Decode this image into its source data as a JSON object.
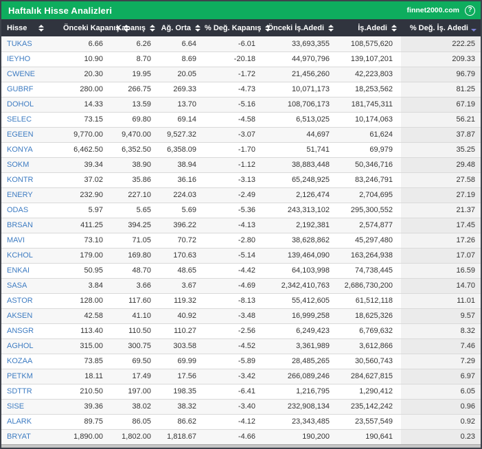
{
  "titlebar": {
    "title": "Haftalık Hisse Analizleri",
    "site": "finnet2000.com",
    "help_icon": "?"
  },
  "colors": {
    "titlebar_green": "#0ead5e",
    "header_dark": "#30343e",
    "ticker_blue": "#3e7cc2",
    "sorted_arrow": "#7b80d6"
  },
  "table": {
    "columns": [
      {
        "label": "Hisse",
        "sort": "both"
      },
      {
        "label": "Önceki Kapanış",
        "sort": "both"
      },
      {
        "label": "Kapanış",
        "sort": "both"
      },
      {
        "label": "Ağ. Orta",
        "sort": "both"
      },
      {
        "label": "% Değ. Kapanış",
        "sort": "both"
      },
      {
        "label": "Önceki İş.Adedi",
        "sort": "both"
      },
      {
        "label": "İş.Adedi",
        "sort": "both"
      },
      {
        "label": "% Değ. İş. Adedi",
        "sort": "desc"
      }
    ],
    "rows": [
      [
        "TUKAS",
        "6.66",
        "6.26",
        "6.64",
        "-6.01",
        "33,693,355",
        "108,575,620",
        "222.25"
      ],
      [
        "IEYHO",
        "10.90",
        "8.70",
        "8.69",
        "-20.18",
        "44,970,796",
        "139,107,201",
        "209.33"
      ],
      [
        "CWENE",
        "20.30",
        "19.95",
        "20.05",
        "-1.72",
        "21,456,260",
        "42,223,803",
        "96.79"
      ],
      [
        "GUBRF",
        "280.00",
        "266.75",
        "269.33",
        "-4.73",
        "10,071,173",
        "18,253,562",
        "81.25"
      ],
      [
        "DOHOL",
        "14.33",
        "13.59",
        "13.70",
        "-5.16",
        "108,706,173",
        "181,745,311",
        "67.19"
      ],
      [
        "SELEC",
        "73.15",
        "69.80",
        "69.14",
        "-4.58",
        "6,513,025",
        "10,174,063",
        "56.21"
      ],
      [
        "EGEEN",
        "9,770.00",
        "9,470.00",
        "9,527.32",
        "-3.07",
        "44,697",
        "61,624",
        "37.87"
      ],
      [
        "KONYA",
        "6,462.50",
        "6,352.50",
        "6,358.09",
        "-1.70",
        "51,741",
        "69,979",
        "35.25"
      ],
      [
        "SOKM",
        "39.34",
        "38.90",
        "38.94",
        "-1.12",
        "38,883,448",
        "50,346,716",
        "29.48"
      ],
      [
        "KONTR",
        "37.02",
        "35.86",
        "36.16",
        "-3.13",
        "65,248,925",
        "83,246,791",
        "27.58"
      ],
      [
        "ENERY",
        "232.90",
        "227.10",
        "224.03",
        "-2.49",
        "2,126,474",
        "2,704,695",
        "27.19"
      ],
      [
        "ODAS",
        "5.97",
        "5.65",
        "5.69",
        "-5.36",
        "243,313,102",
        "295,300,552",
        "21.37"
      ],
      [
        "BRSAN",
        "411.25",
        "394.25",
        "396.22",
        "-4.13",
        "2,192,381",
        "2,574,877",
        "17.45"
      ],
      [
        "MAVI",
        "73.10",
        "71.05",
        "70.72",
        "-2.80",
        "38,628,862",
        "45,297,480",
        "17.26"
      ],
      [
        "KCHOL",
        "179.00",
        "169.80",
        "170.63",
        "-5.14",
        "139,464,090",
        "163,264,938",
        "17.07"
      ],
      [
        "ENKAI",
        "50.95",
        "48.70",
        "48.65",
        "-4.42",
        "64,103,998",
        "74,738,445",
        "16.59"
      ],
      [
        "SASA",
        "3.84",
        "3.66",
        "3.67",
        "-4.69",
        "2,342,410,763",
        "2,686,730,200",
        "14.70"
      ],
      [
        "ASTOR",
        "128.00",
        "117.60",
        "119.32",
        "-8.13",
        "55,412,605",
        "61,512,118",
        "11.01"
      ],
      [
        "AKSEN",
        "42.58",
        "41.10",
        "40.92",
        "-3.48",
        "16,999,258",
        "18,625,326",
        "9.57"
      ],
      [
        "ANSGR",
        "113.40",
        "110.50",
        "110.27",
        "-2.56",
        "6,249,423",
        "6,769,632",
        "8.32"
      ],
      [
        "AGHOL",
        "315.00",
        "300.75",
        "303.58",
        "-4.52",
        "3,361,989",
        "3,612,866",
        "7.46"
      ],
      [
        "KOZAA",
        "73.85",
        "69.50",
        "69.99",
        "-5.89",
        "28,485,265",
        "30,560,743",
        "7.29"
      ],
      [
        "PETKM",
        "18.11",
        "17.49",
        "17.56",
        "-3.42",
        "266,089,246",
        "284,627,815",
        "6.97"
      ],
      [
        "SDTTR",
        "210.50",
        "197.00",
        "198.35",
        "-6.41",
        "1,216,795",
        "1,290,412",
        "6.05"
      ],
      [
        "SISE",
        "39.36",
        "38.02",
        "38.32",
        "-3.40",
        "232,908,134",
        "235,142,242",
        "0.96"
      ],
      [
        "ALARK",
        "89.75",
        "86.05",
        "86.62",
        "-4.12",
        "23,343,485",
        "23,557,549",
        "0.92"
      ],
      [
        "BRYAT",
        "1,890.00",
        "1,802.00",
        "1,818.67",
        "-4.66",
        "190,200",
        "190,641",
        "0.23"
      ]
    ]
  }
}
